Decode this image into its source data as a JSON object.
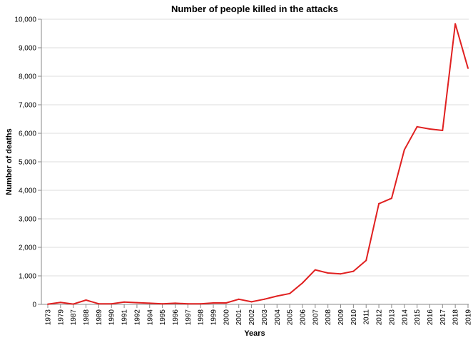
{
  "chart_data": {
    "type": "line",
    "title": "Number of people killed in the attacks",
    "xlabel": "Years",
    "ylabel": "Number of deaths",
    "ylim": [
      0,
      10000
    ],
    "y_ticks": [
      "0",
      "1,000",
      "2,000",
      "3,000",
      "4,000",
      "5,000",
      "6,000",
      "7,000",
      "8,000",
      "9,000",
      "10,000"
    ],
    "y_tick_values": [
      0,
      1000,
      2000,
      3000,
      4000,
      5000,
      6000,
      7000,
      8000,
      9000,
      10000
    ],
    "grid": true,
    "legend": "none",
    "categories": [
      "1973",
      "1979",
      "1987",
      "1988",
      "1989",
      "1990",
      "1991",
      "1992",
      "1994",
      "1995",
      "1996",
      "1997",
      "1998",
      "1999",
      "2000",
      "2001",
      "2002",
      "2003",
      "2004",
      "2005",
      "2006",
      "2007",
      "2008",
      "2009",
      "2010",
      "2011",
      "2012",
      "2013",
      "2014",
      "2015",
      "2016",
      "2017",
      "2018",
      "2019"
    ],
    "series": [
      {
        "color": "#e02020",
        "values": [
          5,
          70,
          10,
          150,
          20,
          20,
          80,
          60,
          40,
          20,
          40,
          20,
          20,
          50,
          50,
          180,
          90,
          180,
          290,
          380,
          750,
          1210,
          1100,
          1070,
          1160,
          1540,
          3530,
          3720,
          5420,
          6230,
          6150,
          6100,
          9840,
          8280
        ]
      }
    ]
  }
}
